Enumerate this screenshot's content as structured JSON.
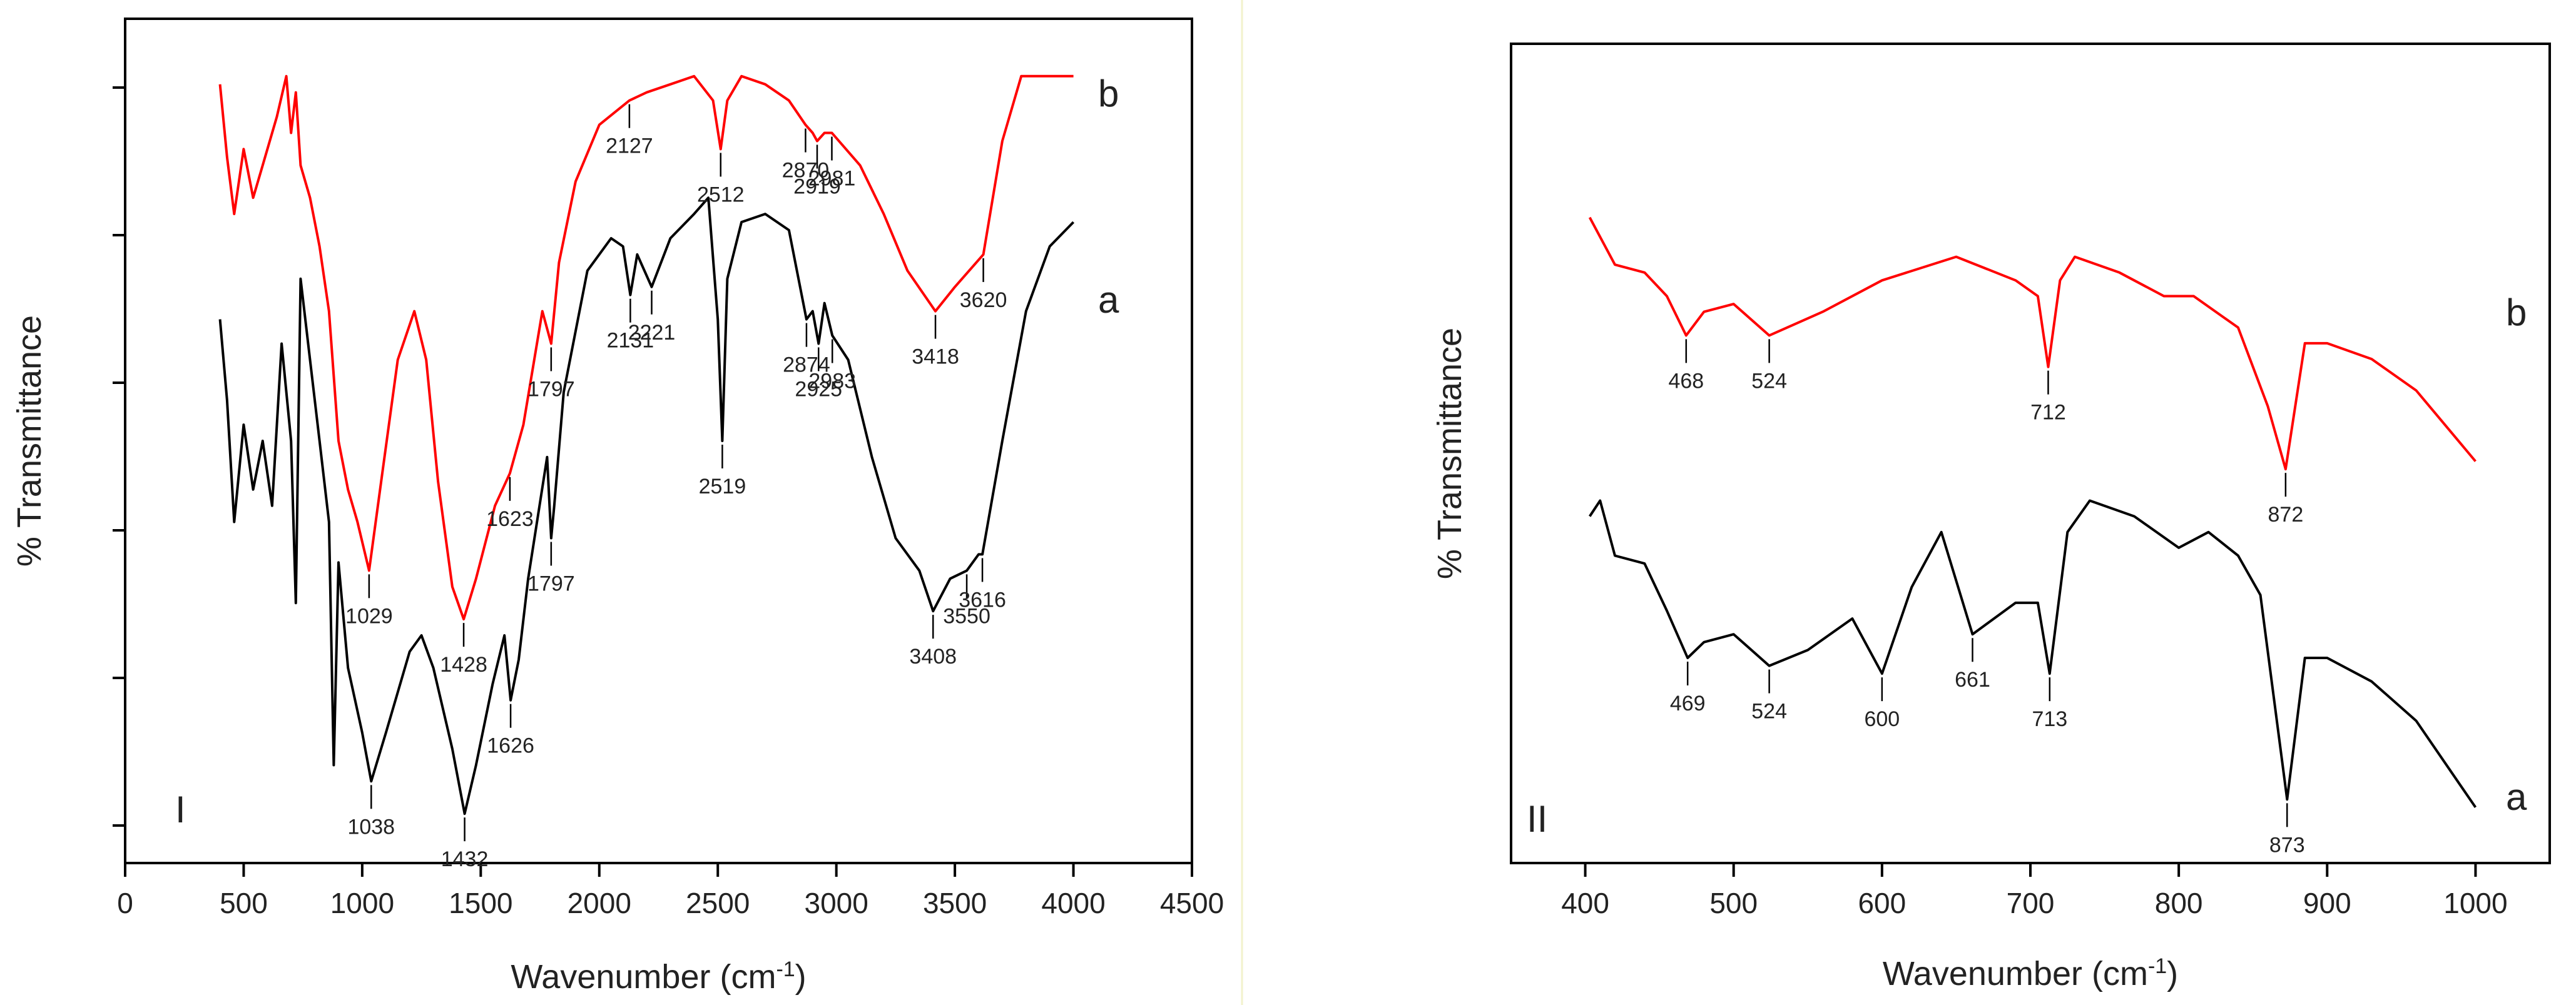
{
  "colors": {
    "series_a": "#000000",
    "series_b": "#ff0000",
    "axis": "#000000",
    "divider": "#f2f2cc"
  },
  "chart_data": [
    {
      "type": "line",
      "panel_label": "I",
      "xlabel": "Wavenumber (cm",
      "xlabel_sup": "-1",
      "xlabel_close": ")",
      "ylabel": "% Transmittance",
      "xlim": [
        0,
        4500
      ],
      "ylim": [
        0,
        100
      ],
      "x_ticks": [
        "0",
        "500",
        "1000",
        "1500",
        "2000",
        "2500",
        "3000",
        "3500",
        "4000",
        "4500"
      ],
      "y_ticks_count": 6,
      "series": [
        {
          "name": "a",
          "color": "#000000",
          "points": [
            [
              400,
              65
            ],
            [
              430,
              55
            ],
            [
              460,
              40
            ],
            [
              500,
              52
            ],
            [
              540,
              44
            ],
            [
              580,
              50
            ],
            [
              620,
              42
            ],
            [
              660,
              62
            ],
            [
              700,
              50
            ],
            [
              720,
              30
            ],
            [
              740,
              70
            ],
            [
              780,
              60
            ],
            [
              820,
              50
            ],
            [
              860,
              40
            ],
            [
              880,
              10
            ],
            [
              900,
              35
            ],
            [
              940,
              22
            ],
            [
              1000,
              14
            ],
            [
              1038,
              8
            ],
            [
              1100,
              14
            ],
            [
              1200,
              24
            ],
            [
              1250,
              26
            ],
            [
              1300,
              22
            ],
            [
              1380,
              12
            ],
            [
              1432,
              4
            ],
            [
              1480,
              10
            ],
            [
              1550,
              20
            ],
            [
              1600,
              26
            ],
            [
              1626,
              18
            ],
            [
              1660,
              23
            ],
            [
              1700,
              33
            ],
            [
              1780,
              48
            ],
            [
              1797,
              38
            ],
            [
              1810,
              42
            ],
            [
              1850,
              56
            ],
            [
              1950,
              71
            ],
            [
              2050,
              75
            ],
            [
              2100,
              74
            ],
            [
              2131,
              68
            ],
            [
              2160,
              73
            ],
            [
              2221,
              69
            ],
            [
              2300,
              75
            ],
            [
              2400,
              78
            ],
            [
              2460,
              80
            ],
            [
              2500,
              65
            ],
            [
              2519,
              50
            ],
            [
              2540,
              70
            ],
            [
              2600,
              77
            ],
            [
              2700,
              78
            ],
            [
              2800,
              76
            ],
            [
              2874,
              65
            ],
            [
              2900,
              66
            ],
            [
              2925,
              62
            ],
            [
              2950,
              67
            ],
            [
              2983,
              63
            ],
            [
              3050,
              60
            ],
            [
              3150,
              48
            ],
            [
              3250,
              38
            ],
            [
              3350,
              34
            ],
            [
              3408,
              29
            ],
            [
              3480,
              33
            ],
            [
              3550,
              34
            ],
            [
              3600,
              36
            ],
            [
              3616,
              36
            ],
            [
              3700,
              50
            ],
            [
              3800,
              66
            ],
            [
              3900,
              74
            ],
            [
              4000,
              77
            ]
          ],
          "peaks": [
            {
              "label": "1038",
              "x": 1038,
              "y": 8,
              "dir": "below"
            },
            {
              "label": "1432",
              "x": 1432,
              "y": 4,
              "dir": "below"
            },
            {
              "label": "1626",
              "x": 1626,
              "y": 18,
              "dir": "below"
            },
            {
              "label": "1797",
              "x": 1797,
              "y": 38,
              "dir": "below"
            },
            {
              "label": "2131",
              "x": 2131,
              "y": 68,
              "dir": "below"
            },
            {
              "label": "2221",
              "x": 2221,
              "y": 69,
              "dir": "below"
            },
            {
              "label": "2519",
              "x": 2519,
              "y": 50,
              "dir": "below"
            },
            {
              "label": "2874",
              "x": 2874,
              "y": 65,
              "dir": "below"
            },
            {
              "label": "2925",
              "x": 2925,
              "y": 62,
              "dir": "below"
            },
            {
              "label": "2983",
              "x": 2983,
              "y": 63,
              "dir": "below"
            },
            {
              "label": "3408",
              "x": 3408,
              "y": 29,
              "dir": "below"
            },
            {
              "label": "3550",
              "x": 3550,
              "y": 34,
              "dir": "below"
            },
            {
              "label": "3616",
              "x": 3616,
              "y": 36,
              "dir": "below"
            }
          ]
        },
        {
          "name": "b",
          "color": "#ff0000",
          "points": [
            [
              400,
              94
            ],
            [
              430,
              85
            ],
            [
              460,
              78
            ],
            [
              500,
              86
            ],
            [
              540,
              80
            ],
            [
              580,
              84
            ],
            [
              640,
              90
            ],
            [
              680,
              95
            ],
            [
              700,
              88
            ],
            [
              720,
              93
            ],
            [
              740,
              84
            ],
            [
              780,
              80
            ],
            [
              820,
              74
            ],
            [
              860,
              66
            ],
            [
              880,
              58
            ],
            [
              900,
              50
            ],
            [
              940,
              44
            ],
            [
              980,
              40
            ],
            [
              1029,
              34
            ],
            [
              1080,
              45
            ],
            [
              1150,
              60
            ],
            [
              1220,
              66
            ],
            [
              1270,
              60
            ],
            [
              1320,
              45
            ],
            [
              1380,
              32
            ],
            [
              1428,
              28
            ],
            [
              1480,
              33
            ],
            [
              1560,
              42
            ],
            [
              1623,
              46
            ],
            [
              1680,
              52
            ],
            [
              1760,
              66
            ],
            [
              1797,
              62
            ],
            [
              1830,
              72
            ],
            [
              1900,
              82
            ],
            [
              2000,
              89
            ],
            [
              2127,
              92
            ],
            [
              2200,
              93
            ],
            [
              2300,
              94
            ],
            [
              2400,
              95
            ],
            [
              2480,
              92
            ],
            [
              2512,
              86
            ],
            [
              2540,
              92
            ],
            [
              2600,
              95
            ],
            [
              2700,
              94
            ],
            [
              2800,
              92
            ],
            [
              2870,
              89
            ],
            [
              2900,
              88
            ],
            [
              2919,
              87
            ],
            [
              2950,
              88
            ],
            [
              2981,
              88
            ],
            [
              3100,
              84
            ],
            [
              3200,
              78
            ],
            [
              3300,
              71
            ],
            [
              3418,
              66
            ],
            [
              3500,
              69
            ],
            [
              3620,
              73
            ],
            [
              3700,
              87
            ],
            [
              3780,
              95
            ],
            [
              4000,
              95
            ]
          ],
          "peaks": [
            {
              "label": "1029",
              "x": 1029,
              "y": 34,
              "dir": "below"
            },
            {
              "label": "1428",
              "x": 1428,
              "y": 28,
              "dir": "below"
            },
            {
              "label": "1623",
              "x": 1623,
              "y": 46,
              "dir": "below"
            },
            {
              "label": "1797",
              "x": 1797,
              "y": 62,
              "dir": "below"
            },
            {
              "label": "2127",
              "x": 2127,
              "y": 92,
              "dir": "below"
            },
            {
              "label": "2512",
              "x": 2512,
              "y": 86,
              "dir": "below"
            },
            {
              "label": "2870",
              "x": 2870,
              "y": 89,
              "dir": "below"
            },
            {
              "label": "2919",
              "x": 2919,
              "y": 87,
              "dir": "below"
            },
            {
              "label": "2981",
              "x": 2981,
              "y": 88,
              "dir": "below"
            },
            {
              "label": "3418",
              "x": 3418,
              "y": 66,
              "dir": "below"
            },
            {
              "label": "3620",
              "x": 3620,
              "y": 73,
              "dir": "below"
            }
          ]
        }
      ]
    },
    {
      "type": "line",
      "panel_label": "II",
      "xlabel": "Wavenumber (cm",
      "xlabel_sup": "-1",
      "xlabel_close": ")",
      "ylabel": "% Transmittance",
      "xlim": [
        350,
        1050
      ],
      "ylim": [
        0,
        100
      ],
      "x_ticks": [
        "400",
        "500",
        "600",
        "700",
        "800",
        "900",
        "1000"
      ],
      "series": [
        {
          "name": "a",
          "color": "#000000",
          "points": [
            [
              403,
              42
            ],
            [
              410,
              44
            ],
            [
              420,
              37
            ],
            [
              440,
              36
            ],
            [
              455,
              30
            ],
            [
              469,
              24
            ],
            [
              480,
              26
            ],
            [
              500,
              27
            ],
            [
              524,
              23
            ],
            [
              550,
              25
            ],
            [
              580,
              29
            ],
            [
              600,
              22
            ],
            [
              620,
              33
            ],
            [
              640,
              40
            ],
            [
              661,
              27
            ],
            [
              690,
              31
            ],
            [
              705,
              31
            ],
            [
              713,
              22
            ],
            [
              725,
              40
            ],
            [
              740,
              44
            ],
            [
              770,
              42
            ],
            [
              800,
              38
            ],
            [
              820,
              40
            ],
            [
              840,
              37
            ],
            [
              855,
              32
            ],
            [
              873,
              6
            ],
            [
              885,
              24
            ],
            [
              900,
              24
            ],
            [
              930,
              21
            ],
            [
              960,
              16
            ],
            [
              1000,
              5
            ]
          ],
          "peaks": [
            {
              "label": "469",
              "x": 469,
              "y": 24,
              "dir": "below"
            },
            {
              "label": "524",
              "x": 524,
              "y": 23,
              "dir": "below"
            },
            {
              "label": "600",
              "x": 600,
              "y": 22,
              "dir": "below"
            },
            {
              "label": "661",
              "x": 661,
              "y": 27,
              "dir": "below"
            },
            {
              "label": "713",
              "x": 713,
              "y": 22,
              "dir": "below"
            },
            {
              "label": "873",
              "x": 873,
              "y": 6,
              "dir": "below"
            }
          ]
        },
        {
          "name": "b",
          "color": "#ff0000",
          "points": [
            [
              403,
              80
            ],
            [
              420,
              74
            ],
            [
              440,
              73
            ],
            [
              455,
              70
            ],
            [
              468,
              65
            ],
            [
              480,
              68
            ],
            [
              500,
              69
            ],
            [
              524,
              65
            ],
            [
              560,
              68
            ],
            [
              600,
              72
            ],
            [
              650,
              75
            ],
            [
              690,
              72
            ],
            [
              705,
              70
            ],
            [
              712,
              61
            ],
            [
              720,
              72
            ],
            [
              730,
              75
            ],
            [
              760,
              73
            ],
            [
              790,
              70
            ],
            [
              810,
              70
            ],
            [
              840,
              66
            ],
            [
              860,
              56
            ],
            [
              872,
              48
            ],
            [
              885,
              64
            ],
            [
              900,
              64
            ],
            [
              930,
              62
            ],
            [
              960,
              58
            ],
            [
              1000,
              49
            ]
          ],
          "peaks": [
            {
              "label": "468",
              "x": 468,
              "y": 65,
              "dir": "below"
            },
            {
              "label": "524",
              "x": 524,
              "y": 65,
              "dir": "below"
            },
            {
              "label": "712",
              "x": 712,
              "y": 61,
              "dir": "below"
            },
            {
              "label": "872",
              "x": 872,
              "y": 48,
              "dir": "below"
            }
          ]
        }
      ]
    }
  ]
}
